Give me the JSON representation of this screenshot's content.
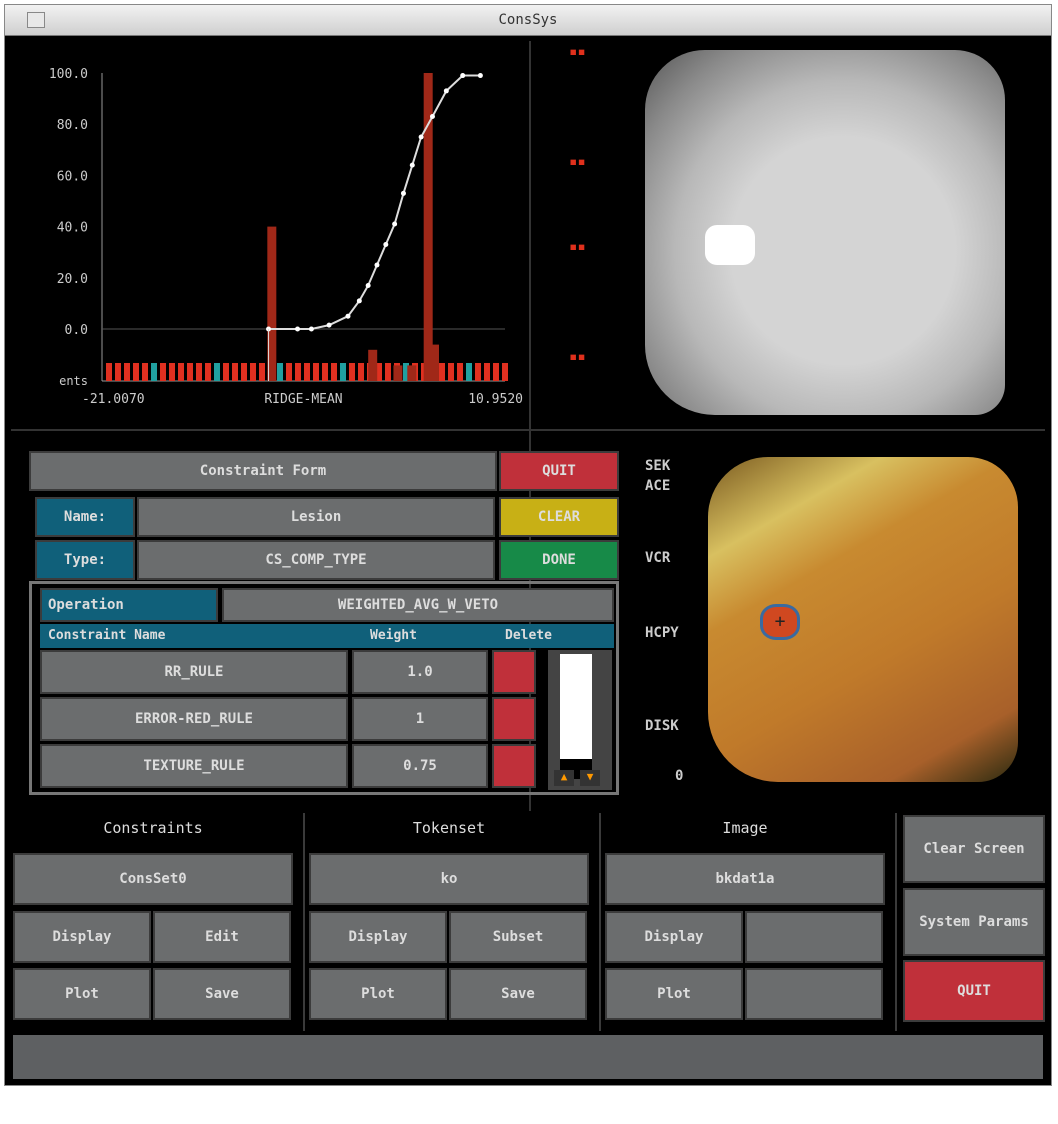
{
  "window": {
    "title": "ConsSys"
  },
  "chart_data": {
    "type": "bar",
    "ytick_labels": [
      "100.0",
      "80.0",
      "60.0",
      "40.0",
      "20.0",
      "0.0",
      "ents"
    ],
    "yticks": [
      100,
      80,
      60,
      40,
      20,
      0
    ],
    "ylim": [
      -20,
      100
    ],
    "xtick_labels": [
      "-21.0070",
      "RIDGE-MEAN",
      "10.9520"
    ],
    "xlim": [
      -21.007,
      10.952
    ],
    "threshold": 0,
    "bars": [
      {
        "x": -7.5,
        "value": 40,
        "color": "#a02818"
      },
      {
        "x": 4.9,
        "value": 100,
        "color": "#a02818"
      },
      {
        "x": 2.5,
        "value": -6,
        "color": "#a02818"
      },
      {
        "x": 3.6,
        "value": -6,
        "color": "#a02818"
      },
      {
        "x": 0.5,
        "value": -12,
        "color": "#a02818"
      },
      {
        "x": 5.4,
        "value": -14,
        "color": "#a02818"
      }
    ],
    "cdf": [
      [
        -7.8,
        0
      ],
      [
        -5.5,
        0
      ],
      [
        -4.4,
        0
      ],
      [
        -3,
        1.5
      ],
      [
        -1.5,
        5
      ],
      [
        -0.6,
        11
      ],
      [
        0.1,
        17
      ],
      [
        0.8,
        25
      ],
      [
        1.5,
        33
      ],
      [
        2.2,
        41
      ],
      [
        2.9,
        53
      ],
      [
        3.6,
        64
      ],
      [
        4.3,
        75
      ],
      [
        5.2,
        83
      ],
      [
        6.3,
        93
      ],
      [
        7.6,
        99
      ],
      [
        9.0,
        99
      ]
    ]
  },
  "depth_labels": [
    "SEK",
    "ACE",
    "VCR",
    "HCPY",
    "DISK",
    "0"
  ],
  "form": {
    "title": "Constraint Form",
    "quit": "QUIT",
    "clear": "CLEAR",
    "done": "DONE",
    "name_label": "Name:",
    "name_value": "Lesion",
    "type_label": "Type:",
    "type_value": "CS_COMP_TYPE",
    "operation_label": "Operation",
    "operation_value": "WEIGHTED_AVG_W_VETO",
    "columns": [
      "Constraint Name",
      "Weight",
      "Delete"
    ],
    "rows": [
      {
        "name": "RR_RULE",
        "weight": "1.0"
      },
      {
        "name": "ERROR-RED_RULE",
        "weight": "1"
      },
      {
        "name": "TEXTURE_RULE",
        "weight": "0.75"
      }
    ],
    "scroll_fraction": 0.75
  },
  "panels": [
    {
      "title": "Constraints",
      "value": "ConsSet0",
      "buttons": [
        "Display",
        "Edit",
        "Plot",
        "Save"
      ]
    },
    {
      "title": "Tokenset",
      "value": "ko",
      "buttons": [
        "Display",
        "Subset",
        "Plot",
        "Save"
      ]
    },
    {
      "title": "Image",
      "value": "bkdat1a",
      "buttons": [
        "Display",
        "",
        "Plot",
        ""
      ]
    }
  ],
  "side": {
    "clear": "Clear Screen",
    "params": "System Params",
    "quit": "QUIT"
  },
  "status": ""
}
